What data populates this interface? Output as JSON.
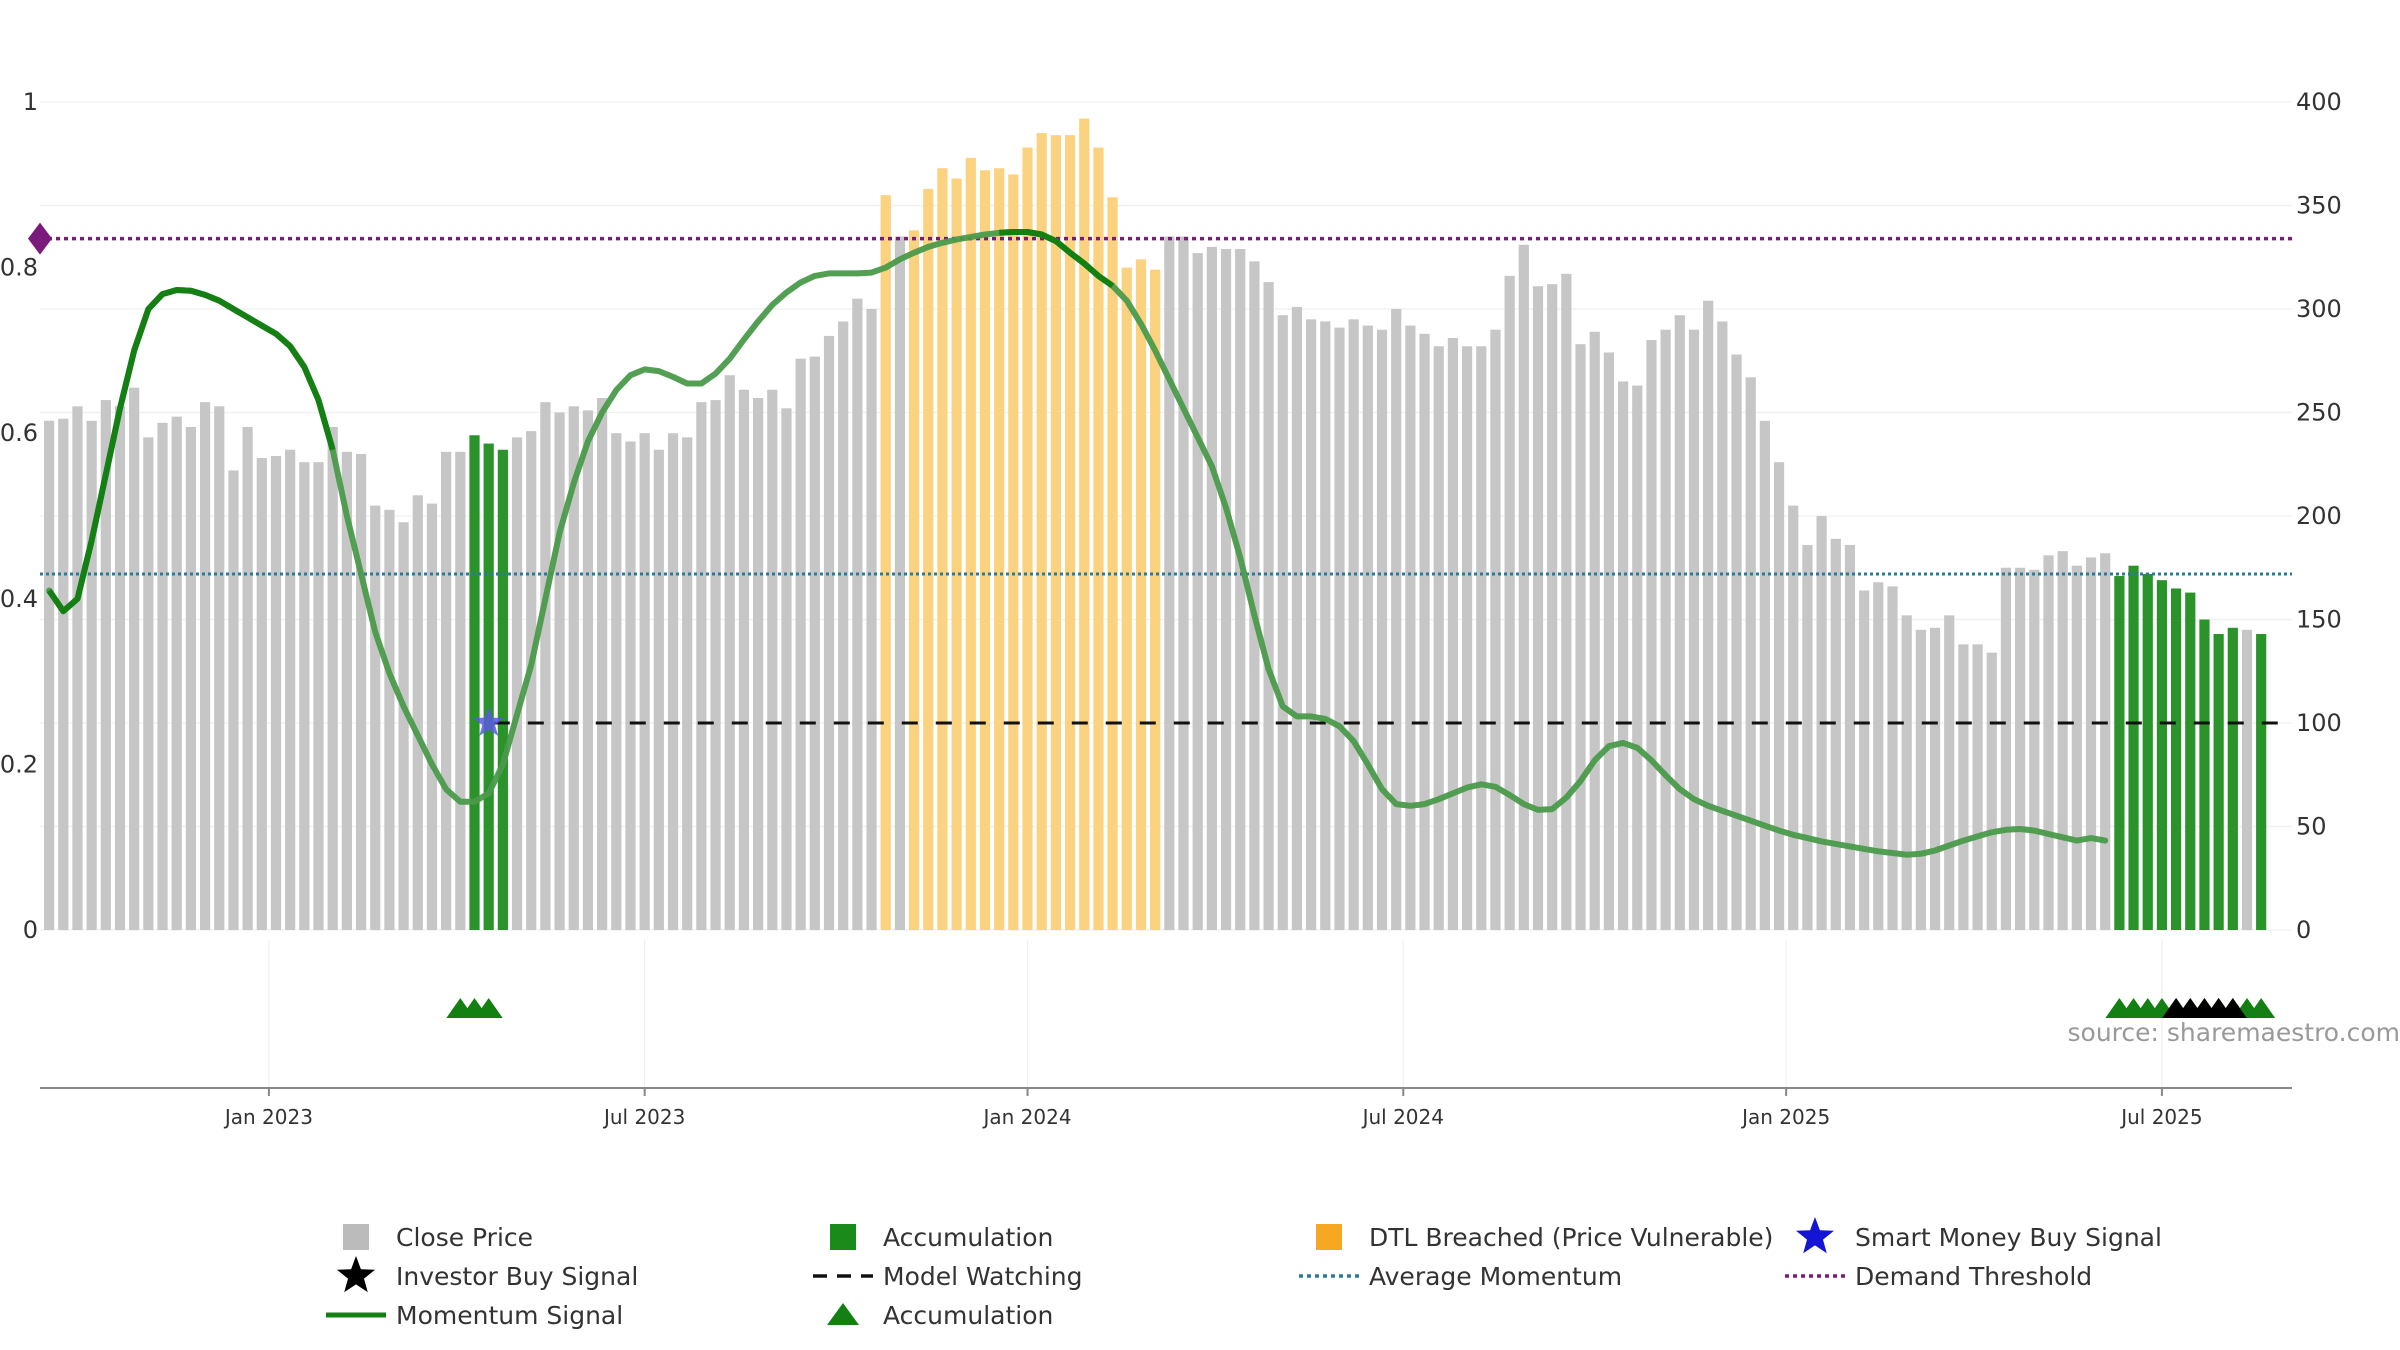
{
  "chart_data": {
    "type": "bar",
    "title": "",
    "xlabel": "",
    "ylabel_left": "",
    "ylabel_right": "",
    "left_axis": {
      "ylim": [
        0,
        1
      ],
      "ticks": [
        "0",
        "0.2",
        "0.4",
        "0.6",
        "0.8",
        "1"
      ]
    },
    "right_axis": {
      "ylim": [
        0,
        400
      ],
      "ticks": [
        "0",
        "50",
        "100",
        "150",
        "200",
        "250",
        "300",
        "350",
        "400"
      ]
    },
    "x_ticks": [
      {
        "label": "Jan 2023",
        "index": 15.5
      },
      {
        "label": "Jul 2023",
        "index": 42
      },
      {
        "label": "Jan 2024",
        "index": 69
      },
      {
        "label": "Jul 2024",
        "index": 95.5
      },
      {
        "label": "Jan 2025",
        "index": 122.5
      },
      {
        "label": "Jul 2025",
        "index": 149
      }
    ],
    "close_price": [
      246,
      247,
      253,
      246,
      256,
      253,
      262,
      238,
      245,
      248,
      243,
      255,
      253,
      222,
      243,
      228,
      229,
      232,
      226,
      226,
      243,
      231,
      230,
      205,
      203,
      197,
      210,
      206,
      231,
      231,
      239,
      235,
      232,
      238,
      241,
      255,
      250,
      253,
      251,
      257,
      240,
      236,
      240,
      232,
      240,
      238,
      255,
      256,
      268,
      261,
      257,
      261,
      252,
      276,
      277,
      287,
      294,
      305,
      300,
      355,
      335,
      338,
      358,
      368,
      363,
      373,
      367,
      368,
      365,
      378,
      385,
      384,
      384,
      392,
      378,
      354,
      320,
      324,
      319,
      335,
      335,
      327,
      330,
      329,
      329,
      323,
      313,
      297,
      301,
      295,
      294,
      291,
      295,
      292,
      290,
      300,
      292,
      288,
      282,
      286,
      282,
      282,
      290,
      316,
      331,
      311,
      312,
      317,
      283,
      289,
      279,
      265,
      263,
      285,
      290,
      297,
      290,
      304,
      294,
      278,
      267,
      246,
      226,
      205,
      186,
      200,
      189,
      186,
      164,
      168,
      166,
      152,
      145,
      146,
      152,
      138,
      138,
      134,
      175,
      175,
      174,
      181,
      183,
      176,
      180,
      182,
      171,
      176,
      172,
      169,
      165,
      163,
      150,
      143,
      146,
      145,
      143
    ],
    "bar_status": {
      "accumulation_indices": [
        30,
        31,
        32,
        146,
        147,
        148,
        149,
        150,
        151,
        152,
        153,
        154,
        156
      ],
      "dtl_breached_indices": [
        59,
        61,
        62,
        63,
        64,
        65,
        66,
        67,
        68,
        69,
        70,
        71,
        72,
        73,
        74,
        75,
        76,
        77,
        78
      ]
    },
    "momentum_signal": {
      "points": [
        [
          0,
          0.41
        ],
        [
          1,
          0.385
        ],
        [
          2,
          0.4
        ],
        [
          3,
          0.47
        ],
        [
          4,
          0.55
        ],
        [
          5,
          0.63
        ],
        [
          6,
          0.7
        ],
        [
          7,
          0.75
        ],
        [
          8,
          0.768
        ],
        [
          9,
          0.773
        ],
        [
          10,
          0.772
        ],
        [
          11,
          0.767
        ],
        [
          12,
          0.76
        ],
        [
          13,
          0.75
        ],
        [
          14,
          0.74
        ],
        [
          15,
          0.73
        ],
        [
          16,
          0.72
        ],
        [
          17,
          0.705
        ],
        [
          18,
          0.68
        ],
        [
          19,
          0.64
        ],
        [
          20,
          0.58
        ],
        [
          21,
          0.5
        ],
        [
          22,
          0.43
        ],
        [
          23,
          0.36
        ],
        [
          24,
          0.31
        ],
        [
          25,
          0.27
        ],
        [
          26,
          0.235
        ],
        [
          27,
          0.2
        ],
        [
          28,
          0.17
        ],
        [
          29,
          0.155
        ],
        [
          30,
          0.155
        ],
        [
          31,
          0.165
        ],
        [
          32,
          0.2
        ],
        [
          33,
          0.26
        ],
        [
          34,
          0.32
        ],
        [
          35,
          0.4
        ],
        [
          36,
          0.48
        ],
        [
          37,
          0.54
        ],
        [
          38,
          0.59
        ],
        [
          39,
          0.625
        ],
        [
          40,
          0.652
        ],
        [
          41,
          0.67
        ],
        [
          42,
          0.677
        ],
        [
          43,
          0.675
        ],
        [
          44,
          0.668
        ],
        [
          45,
          0.66
        ],
        [
          46,
          0.66
        ],
        [
          47,
          0.672
        ],
        [
          48,
          0.69
        ],
        [
          49,
          0.713
        ],
        [
          50,
          0.735
        ],
        [
          51,
          0.755
        ],
        [
          52,
          0.77
        ],
        [
          53,
          0.782
        ],
        [
          54,
          0.79
        ],
        [
          55,
          0.793
        ],
        [
          56,
          0.793
        ],
        [
          57,
          0.793
        ],
        [
          58,
          0.794
        ],
        [
          59,
          0.8
        ],
        [
          60,
          0.81
        ],
        [
          61,
          0.818
        ],
        [
          62,
          0.825
        ],
        [
          63,
          0.83
        ],
        [
          64,
          0.834
        ],
        [
          65,
          0.837
        ],
        [
          66,
          0.84
        ],
        [
          67,
          0.842
        ],
        [
          68,
          0.843
        ],
        [
          69,
          0.843
        ],
        [
          70,
          0.84
        ],
        [
          71,
          0.832
        ],
        [
          72,
          0.818
        ],
        [
          73,
          0.805
        ],
        [
          74,
          0.79
        ],
        [
          75,
          0.778
        ],
        [
          76,
          0.76
        ],
        [
          77,
          0.732
        ],
        [
          78,
          0.7
        ],
        [
          79,
          0.665
        ],
        [
          80,
          0.63
        ],
        [
          81,
          0.595
        ],
        [
          82,
          0.56
        ],
        [
          83,
          0.51
        ],
        [
          84,
          0.45
        ],
        [
          85,
          0.38
        ],
        [
          86,
          0.315
        ],
        [
          87,
          0.27
        ],
        [
          88,
          0.258
        ],
        [
          89,
          0.258
        ],
        [
          90,
          0.255
        ],
        [
          91,
          0.246
        ],
        [
          92,
          0.228
        ],
        [
          93,
          0.2
        ],
        [
          94,
          0.17
        ],
        [
          95,
          0.152
        ],
        [
          96,
          0.15
        ],
        [
          97,
          0.152
        ],
        [
          98,
          0.158
        ],
        [
          99,
          0.165
        ],
        [
          100,
          0.172
        ],
        [
          101,
          0.176
        ],
        [
          102,
          0.173
        ],
        [
          103,
          0.163
        ],
        [
          104,
          0.152
        ],
        [
          105,
          0.145
        ],
        [
          106,
          0.146
        ],
        [
          107,
          0.16
        ],
        [
          108,
          0.18
        ],
        [
          109,
          0.205
        ],
        [
          110,
          0.222
        ],
        [
          111,
          0.226
        ],
        [
          112,
          0.22
        ],
        [
          113,
          0.205
        ],
        [
          114,
          0.187
        ],
        [
          115,
          0.17
        ],
        [
          116,
          0.158
        ],
        [
          117,
          0.15
        ],
        [
          118,
          0.144
        ],
        [
          119,
          0.138
        ],
        [
          120,
          0.132
        ],
        [
          121,
          0.126
        ],
        [
          122,
          0.12
        ],
        [
          123,
          0.115
        ],
        [
          124,
          0.111
        ],
        [
          125,
          0.107
        ],
        [
          126,
          0.104
        ],
        [
          127,
          0.101
        ],
        [
          128,
          0.098
        ],
        [
          129,
          0.095
        ],
        [
          130,
          0.093
        ],
        [
          131,
          0.091
        ],
        [
          132,
          0.092
        ],
        [
          133,
          0.096
        ],
        [
          134,
          0.102
        ],
        [
          135,
          0.108
        ],
        [
          136,
          0.113
        ],
        [
          137,
          0.118
        ],
        [
          138,
          0.121
        ],
        [
          139,
          0.122
        ],
        [
          140,
          0.12
        ],
        [
          141,
          0.116
        ],
        [
          142,
          0.112
        ],
        [
          143,
          0.108
        ],
        [
          144,
          0.111
        ],
        [
          145,
          0.108
        ]
      ],
      "solid_until_index": 20,
      "solid_from_index": 67,
      "solid_to_index": 75
    },
    "average_momentum": 0.43,
    "demand_threshold": 0.835,
    "model_watching": {
      "value": 0.25,
      "from_index": 31
    },
    "smart_money_buy_signal": {
      "index": 31,
      "value": 0.25
    },
    "markers": {
      "accumulation_triangles": [
        29,
        30,
        31,
        146,
        147,
        148,
        149,
        150,
        151,
        152,
        153,
        154,
        155,
        156
      ],
      "investor_buy_signals": [
        150,
        151,
        152,
        153,
        154
      ]
    },
    "source": "source: sharemaestro.com",
    "legend": [
      {
        "label": "Close Price",
        "symbol": "square",
        "color": "#bbbbbb"
      },
      {
        "label": "Accumulation",
        "symbol": "square",
        "color": "#1a8a1a"
      },
      {
        "label": "DTL Breached (Price Vulnerable)",
        "symbol": "square",
        "color": "#f7a823"
      },
      {
        "label": "Smart Money Buy Signal",
        "symbol": "star",
        "color": "#1414d6"
      },
      {
        "label": "Investor Buy Signal",
        "symbol": "star",
        "color": "#000000"
      },
      {
        "label": "Model Watching",
        "symbol": "dash",
        "color": "#111111"
      },
      {
        "label": "Average Momentum",
        "symbol": "dotted",
        "color": "#2a7a9a"
      },
      {
        "label": "Demand Threshold",
        "symbol": "dotted",
        "color": "#7a1a7a"
      },
      {
        "label": "Momentum Signal",
        "symbol": "line",
        "color": "#148014"
      },
      {
        "label": "Accumulation",
        "symbol": "triangle",
        "color": "#148014"
      }
    ]
  }
}
